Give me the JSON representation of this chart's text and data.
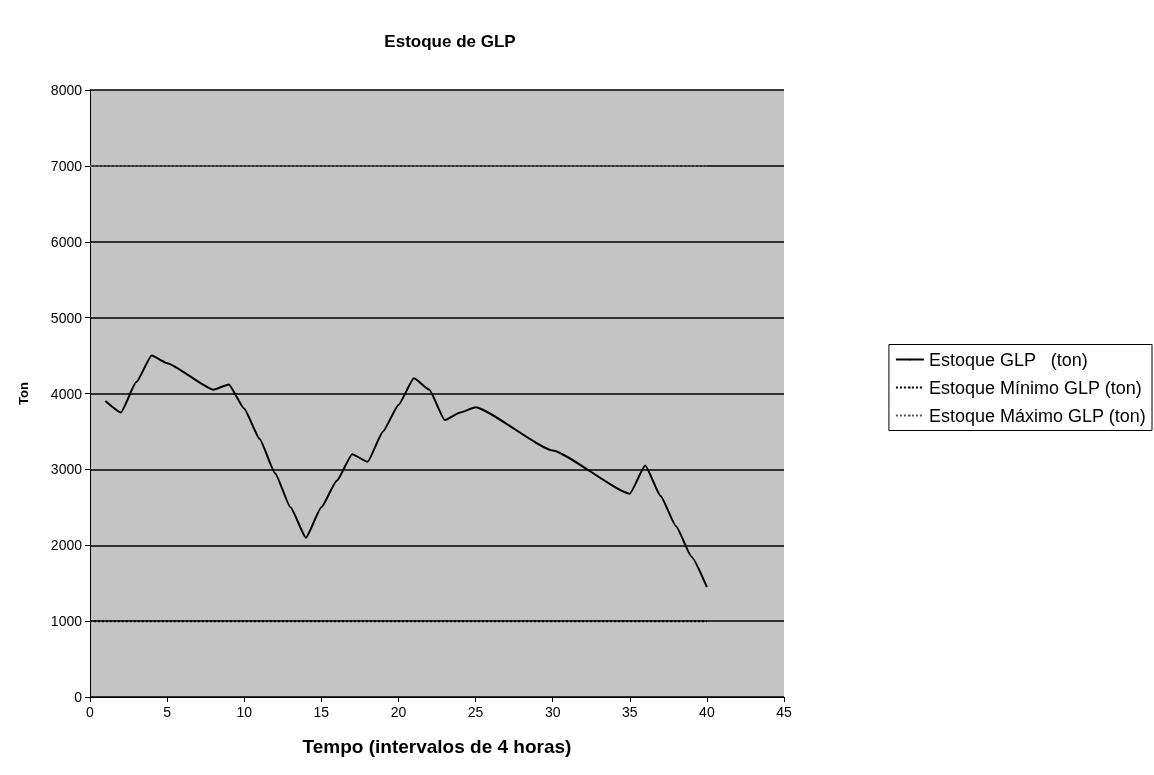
{
  "chart_data": {
    "type": "line",
    "title": "Estoque de GLP",
    "xlabel": "Tempo (intervalos de 4 horas)",
    "ylabel": "Ton",
    "xlim": [
      0,
      45
    ],
    "xticks": [
      0,
      5,
      10,
      15,
      20,
      25,
      30,
      35,
      40,
      45
    ],
    "ylim": [
      0,
      8000
    ],
    "yticks": [
      0,
      1000,
      2000,
      3000,
      4000,
      5000,
      6000,
      7000,
      8000
    ],
    "grid": "y",
    "legend": "right",
    "marker": "none",
    "series": [
      {
        "name": "Estoque GLP   (ton)",
        "color": "#000000",
        "line_style": "solid",
        "x": [
          1,
          2,
          3,
          4,
          5,
          8,
          9,
          10,
          11,
          12,
          13,
          14,
          15,
          16,
          17,
          18,
          19,
          20,
          21,
          22,
          23,
          24,
          25,
          30,
          35,
          36,
          37,
          38,
          39,
          40
        ],
        "values": [
          3900,
          3750,
          4150,
          4500,
          4400,
          4050,
          4120,
          3800,
          3400,
          2950,
          2500,
          2100,
          2500,
          2850,
          3200,
          3100,
          3500,
          3850,
          4200,
          4050,
          3650,
          3750,
          3820,
          3250,
          2680,
          3050,
          2650,
          2250,
          1850,
          1450
        ]
      },
      {
        "name": "Estoque Mínimo GLP (ton)",
        "color": "#000000",
        "line_style": "dotted",
        "x": [
          0,
          40
        ],
        "values": [
          1000,
          1000
        ]
      },
      {
        "name": "Estoque Máximo GLP (ton)",
        "color": "#555555",
        "line_style": "dotted",
        "x": [
          0,
          40
        ],
        "values": [
          7000,
          7000
        ]
      }
    ]
  }
}
